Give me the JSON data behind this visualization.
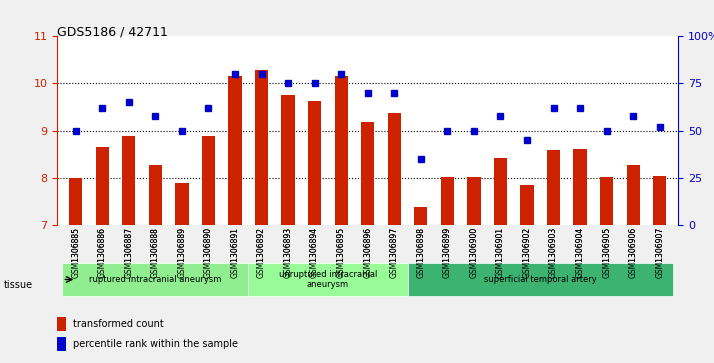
{
  "title": "GDS5186 / 42711",
  "categories": [
    "GSM1306885",
    "GSM1306886",
    "GSM1306887",
    "GSM1306888",
    "GSM1306889",
    "GSM1306890",
    "GSM1306891",
    "GSM1306892",
    "GSM1306893",
    "GSM1306894",
    "GSM1306895",
    "GSM1306896",
    "GSM1306897",
    "GSM1306898",
    "GSM1306899",
    "GSM1306900",
    "GSM1306901",
    "GSM1306902",
    "GSM1306903",
    "GSM1306904",
    "GSM1306905",
    "GSM1306906",
    "GSM1306907"
  ],
  "bar_values": [
    8.0,
    8.65,
    8.88,
    8.28,
    7.9,
    8.88,
    10.15,
    10.28,
    9.75,
    9.62,
    10.15,
    9.18,
    9.38,
    7.38,
    8.02,
    8.02,
    8.42,
    7.85,
    8.58,
    8.62,
    8.02,
    8.28,
    8.05
  ],
  "blue_values": [
    50,
    62,
    65,
    58,
    50,
    62,
    80,
    80,
    75,
    75,
    80,
    70,
    70,
    35,
    50,
    50,
    58,
    45,
    62,
    62,
    50,
    58,
    52
  ],
  "bar_color": "#cc2200",
  "dot_color": "#0000cc",
  "ylim_left": [
    7,
    11
  ],
  "ylim_right": [
    0,
    100
  ],
  "yticks_left": [
    7,
    8,
    9,
    10,
    11
  ],
  "yticks_right": [
    0,
    25,
    50,
    75,
    100
  ],
  "ytick_labels_right": [
    "0",
    "25",
    "50",
    "75",
    "100%"
  ],
  "tissue_groups": [
    {
      "label": "ruptured intracranial aneurysm",
      "start": 0,
      "end": 7,
      "color": "#90ee90"
    },
    {
      "label": "unruptured intracranial\naneurysm",
      "start": 7,
      "end": 13,
      "color": "#98fb98"
    },
    {
      "label": "superficial temporal artery",
      "start": 13,
      "end": 23,
      "color": "#32cd32"
    }
  ],
  "tissue_label": "tissue",
  "legend_bar_label": "transformed count",
  "legend_dot_label": "percentile rank within the sample",
  "background_color": "#d3d3d3",
  "plot_bg_color": "#ffffff",
  "grid_color": "#000000"
}
